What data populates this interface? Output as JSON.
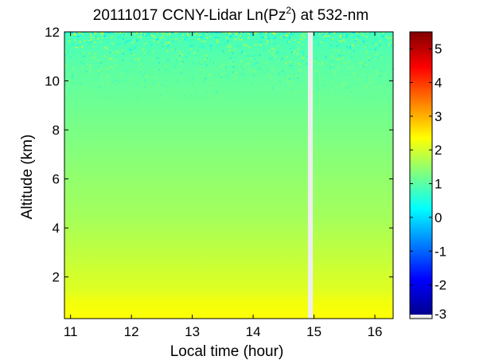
{
  "chart_data": {
    "type": "heatmap",
    "title": {
      "main": "20111017 CCNY-Lidar Ln(Pz",
      "superscript": "2",
      "suffix": ") at 532-nm"
    },
    "xlabel": "Local time (hour)",
    "ylabel": "Altitude (km)",
    "xlim": [
      10.9,
      16.3
    ],
    "ylim": [
      0.3,
      12
    ],
    "x_ticks": [
      11,
      12,
      13,
      14,
      15,
      16
    ],
    "y_ticks": [
      2,
      4,
      6,
      8,
      10,
      12
    ],
    "data_gap": {
      "from_hour": 14.9,
      "to_hour": 14.98
    },
    "colorbar": {
      "range": [
        -3,
        5.5
      ],
      "ticks": [
        -3,
        -2,
        -1,
        0,
        1,
        2,
        3,
        4,
        5
      ],
      "colormap": "jet",
      "missing_value_color": "#eeeeee"
    },
    "profile": {
      "altitude_km": [
        0.3,
        1.0,
        1.4,
        2.0,
        2.6,
        3.5,
        4.5,
        6.0,
        7.5,
        9.0,
        10.0,
        11.0,
        12.0
      ],
      "ln_pz2": [
        2.3,
        2.2,
        2.05,
        1.95,
        1.85,
        1.7,
        1.55,
        1.4,
        1.25,
        1.1,
        1.0,
        0.9,
        0.75
      ]
    }
  }
}
